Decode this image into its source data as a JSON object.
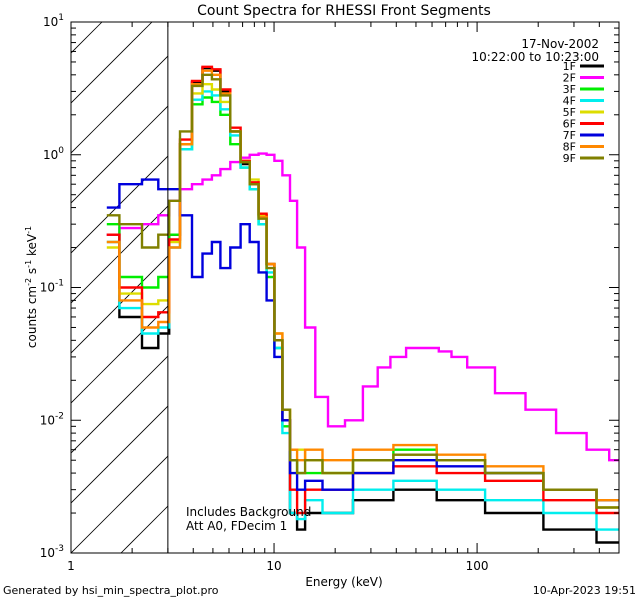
{
  "chart_data": {
    "type": "line",
    "title": "Count Spectra for RHESSI Front Segments",
    "date": "17-Nov-2002",
    "time_range": "10:22:00 to 10:23:00",
    "xlabel": "Energy (keV)",
    "ylabel_main": "counts cm",
    "ylabel_exp1": "-2",
    "ylabel_mid": " s",
    "ylabel_exp2": "-1",
    "ylabel_unit": " keV",
    "ylabel_exp3": "-1",
    "xscale": "log",
    "yscale": "log",
    "xlim": [
      1,
      500
    ],
    "ylim": [
      0.001,
      10
    ],
    "x_ticks": [
      {
        "value": 1,
        "label": "1"
      },
      {
        "value": 10,
        "label": "10"
      },
      {
        "value": 100,
        "label": "100"
      }
    ],
    "y_ticks": [
      {
        "value": 0.001,
        "base": "10",
        "exp": "-3"
      },
      {
        "value": 0.01,
        "base": "10",
        "exp": "-2"
      },
      {
        "value": 0.1,
        "base": "10",
        "exp": "-1"
      },
      {
        "value": 1,
        "base": "10",
        "exp": "0"
      },
      {
        "value": 10,
        "base": "10",
        "exp": "1"
      }
    ],
    "hatched_region_keV": [
      1,
      3
    ],
    "annotation_line1": "Includes Background",
    "annotation_line2": "Att A0, FDecim 1",
    "series": [
      {
        "name": "1F",
        "color": "#000000",
        "x": [
          1.5,
          2,
          2.5,
          2.9,
          3.2,
          3.7,
          4.2,
          4.7,
          5.2,
          5.7,
          6.5,
          7.2,
          8,
          8.8,
          9.6,
          10.5,
          11.5,
          12.5,
          13.5,
          15,
          20,
          30,
          50,
          80,
          150,
          300,
          500
        ],
        "y": [
          0.25,
          0.06,
          0.035,
          0.045,
          0.25,
          1.2,
          3.5,
          4.5,
          4.3,
          3.0,
          1.5,
          0.85,
          0.6,
          0.35,
          0.15,
          0.04,
          0.01,
          0.002,
          0.0015,
          0.002,
          0.002,
          0.0025,
          0.003,
          0.0025,
          0.002,
          0.0015,
          0.0012
        ]
      },
      {
        "name": "2F",
        "color": "#ff00ff",
        "x": [
          1.5,
          2,
          2.5,
          2.9,
          3.2,
          3.7,
          4.2,
          4.7,
          5.2,
          5.7,
          6.5,
          7.2,
          8,
          8.8,
          9.6,
          10.5,
          11.5,
          12.5,
          13.5,
          15,
          17,
          20,
          25,
          30,
          35,
          40,
          50,
          60,
          70,
          80,
          100,
          150,
          200,
          300,
          400,
          500
        ],
        "y": [
          0.25,
          0.28,
          0.3,
          0.35,
          0.45,
          0.55,
          0.6,
          0.65,
          0.7,
          0.78,
          0.88,
          0.95,
          1.0,
          1.02,
          1.0,
          0.9,
          0.7,
          0.45,
          0.2,
          0.05,
          0.015,
          0.009,
          0.01,
          0.018,
          0.025,
          0.03,
          0.035,
          0.035,
          0.033,
          0.03,
          0.025,
          0.016,
          0.012,
          0.008,
          0.006,
          0.005
        ]
      },
      {
        "name": "3F",
        "color": "#00ee00",
        "x": [
          1.5,
          2,
          2.5,
          2.9,
          3.2,
          3.7,
          4.2,
          4.7,
          5.2,
          5.7,
          6.5,
          7.2,
          8,
          8.8,
          9.6,
          10.5,
          11.5,
          12.5,
          13.5,
          15,
          20,
          30,
          50,
          80,
          150,
          300,
          500
        ],
        "y": [
          0.3,
          0.12,
          0.1,
          0.12,
          0.25,
          1.1,
          2.4,
          2.7,
          2.5,
          2.0,
          1.2,
          0.8,
          0.55,
          0.3,
          0.12,
          0.035,
          0.009,
          0.005,
          0.004,
          0.004,
          0.004,
          0.005,
          0.006,
          0.005,
          0.004,
          0.003,
          0.0025
        ]
      },
      {
        "name": "4F",
        "color": "#00eeee",
        "x": [
          1.5,
          2,
          2.5,
          2.9,
          3.2,
          3.7,
          4.2,
          4.7,
          5.2,
          5.7,
          6.5,
          7.2,
          8,
          8.8,
          9.6,
          10.5,
          11.5,
          12.5,
          13.5,
          15,
          20,
          30,
          50,
          80,
          150,
          300,
          500
        ],
        "y": [
          0.22,
          0.07,
          0.045,
          0.05,
          0.2,
          1.1,
          2.6,
          3.0,
          2.8,
          2.2,
          1.4,
          0.8,
          0.55,
          0.3,
          0.13,
          0.035,
          0.008,
          0.002,
          0.0018,
          0.0025,
          0.002,
          0.003,
          0.0035,
          0.003,
          0.0025,
          0.002,
          0.0015
        ]
      },
      {
        "name": "5F",
        "color": "#dddd00",
        "x": [
          1.5,
          2,
          2.5,
          2.9,
          3.2,
          3.7,
          4.2,
          4.7,
          5.2,
          5.7,
          6.5,
          7.2,
          8,
          8.8,
          9.6,
          10.5,
          11.5,
          12.5,
          13.5,
          15,
          20,
          30,
          50,
          80,
          150,
          300,
          500
        ],
        "y": [
          0.2,
          0.09,
          0.075,
          0.08,
          0.22,
          1.2,
          2.9,
          3.4,
          3.1,
          2.5,
          1.5,
          0.9,
          0.65,
          0.35,
          0.15,
          0.045,
          0.012,
          0.006,
          0.006,
          0.005,
          0.004,
          0.005,
          0.0055,
          0.005,
          0.004,
          0.003,
          0.0022
        ]
      },
      {
        "name": "6F",
        "color": "#ff0000",
        "x": [
          1.5,
          2,
          2.5,
          2.9,
          3.2,
          3.7,
          4.2,
          4.7,
          5.2,
          5.7,
          6.5,
          7.2,
          8,
          8.8,
          9.6,
          10.5,
          11.5,
          12.5,
          13.5,
          15,
          20,
          30,
          50,
          80,
          150,
          300,
          500
        ],
        "y": [
          0.25,
          0.1,
          0.06,
          0.065,
          0.23,
          1.3,
          3.6,
          4.6,
          4.4,
          3.1,
          1.6,
          0.9,
          0.62,
          0.36,
          0.15,
          0.04,
          0.01,
          0.003,
          0.002,
          0.003,
          0.003,
          0.004,
          0.0045,
          0.004,
          0.0035,
          0.0025,
          0.002
        ]
      },
      {
        "name": "7F",
        "color": "#0000dd",
        "x": [
          1.5,
          2,
          2.5,
          2.9,
          3.2,
          3.7,
          4.2,
          4.7,
          5.2,
          5.7,
          6.5,
          7.2,
          8,
          8.8,
          9.6,
          10.5,
          11.5,
          12.5,
          13.5,
          15,
          20,
          30,
          50,
          80,
          150,
          300,
          500
        ],
        "y": [
          0.4,
          0.6,
          0.65,
          0.55,
          0.55,
          0.35,
          0.12,
          0.18,
          0.22,
          0.14,
          0.2,
          0.3,
          0.22,
          0.13,
          0.08,
          0.03,
          0.01,
          0.004,
          0.003,
          0.0035,
          0.003,
          0.004,
          0.005,
          0.0045,
          0.004,
          0.003,
          0.0025
        ]
      },
      {
        "name": "8F",
        "color": "#ff8800",
        "x": [
          1.5,
          2,
          2.5,
          2.9,
          3.2,
          3.7,
          4.2,
          4.7,
          5.2,
          5.7,
          6.5,
          7.2,
          8,
          8.8,
          9.6,
          10.5,
          11.5,
          12.5,
          13.5,
          15,
          20,
          30,
          50,
          80,
          150,
          300,
          500
        ],
        "y": [
          0.22,
          0.08,
          0.05,
          0.055,
          0.2,
          1.2,
          3.4,
          4.3,
          4.0,
          2.9,
          1.5,
          0.88,
          0.6,
          0.34,
          0.15,
          0.045,
          0.012,
          0.006,
          0.005,
          0.006,
          0.005,
          0.006,
          0.0065,
          0.0055,
          0.0045,
          0.003,
          0.0025
        ]
      },
      {
        "name": "9F",
        "color": "#808000",
        "x": [
          1.5,
          2,
          2.5,
          2.9,
          3.2,
          3.7,
          4.2,
          4.7,
          5.2,
          5.7,
          6.5,
          7.2,
          8,
          8.8,
          9.6,
          10.5,
          11.5,
          12.5,
          13.5,
          15,
          20,
          30,
          50,
          80,
          150,
          300,
          500
        ],
        "y": [
          0.35,
          0.3,
          0.2,
          0.25,
          0.45,
          1.5,
          3.3,
          4.0,
          3.7,
          2.8,
          1.5,
          0.88,
          0.6,
          0.33,
          0.14,
          0.04,
          0.012,
          0.005,
          0.004,
          0.005,
          0.004,
          0.005,
          0.0055,
          0.005,
          0.004,
          0.003,
          0.0022
        ]
      }
    ]
  },
  "footer": {
    "generated_by": "Generated by hsi_min_spectra_plot.pro",
    "timestamp": "10-Apr-2023 19:51"
  }
}
